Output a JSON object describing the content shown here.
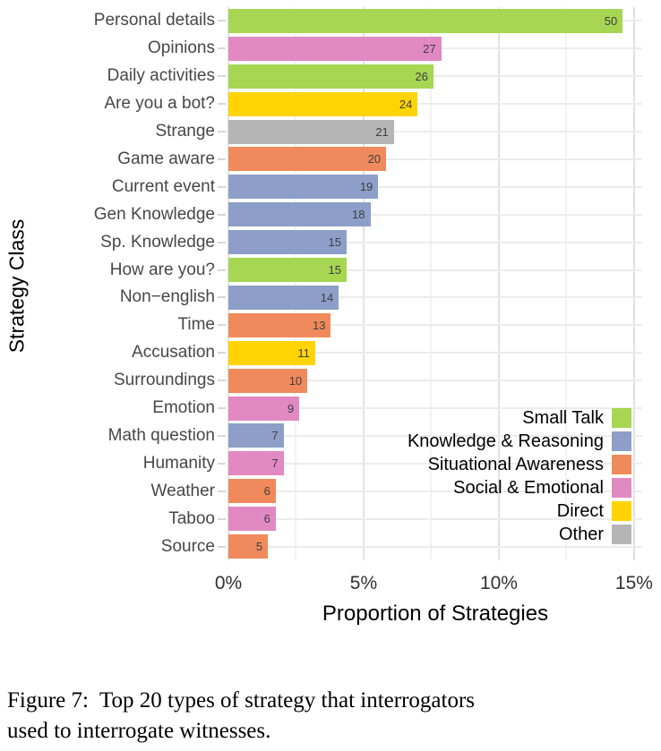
{
  "chart_data": {
    "type": "bar",
    "orientation": "horizontal",
    "title": "",
    "xlabel": "Proportion of Strategies",
    "ylabel": "Strategy Class",
    "x_tick_labels": [
      "0%",
      "5%",
      "10%",
      "15%"
    ],
    "x_tick_values": [
      0,
      5,
      10,
      15
    ],
    "minor_grid_step_pct": 2.5,
    "axis_max_pct": 15.3,
    "grid": true,
    "legend_position": "inside-right",
    "categories": [
      "Personal details",
      "Opinions",
      "Daily activities",
      "Are you a bot?",
      "Strange",
      "Game aware",
      "Current event",
      "Gen Knowledge",
      "Sp. Knowledge",
      "How are you?",
      "Non−english",
      "Time",
      "Accusation",
      "Surroundings",
      "Emotion",
      "Math question",
      "Humanity",
      "Weather",
      "Taboo",
      "Source"
    ],
    "values": [
      50,
      27,
      26,
      24,
      21,
      20,
      19,
      18,
      15,
      15,
      14,
      13,
      11,
      10,
      9,
      7,
      7,
      6,
      6,
      5
    ],
    "proportions_pct": [
      14.58,
      7.87,
      7.58,
      7.0,
      6.12,
      5.83,
      5.54,
      5.25,
      4.37,
      4.37,
      4.08,
      3.79,
      3.21,
      2.92,
      2.62,
      2.04,
      2.04,
      1.75,
      1.75,
      1.46
    ],
    "groups": [
      "Small Talk",
      "Social & Emotional",
      "Small Talk",
      "Direct",
      "Other",
      "Situational Awareness",
      "Knowledge & Reasoning",
      "Knowledge & Reasoning",
      "Knowledge & Reasoning",
      "Small Talk",
      "Knowledge & Reasoning",
      "Situational Awareness",
      "Direct",
      "Situational Awareness",
      "Social & Emotional",
      "Knowledge & Reasoning",
      "Social & Emotional",
      "Situational Awareness",
      "Social & Emotional",
      "Situational Awareness"
    ],
    "legend": [
      {
        "label": "Small Talk",
        "color": "#a6d652"
      },
      {
        "label": "Knowledge & Reasoning",
        "color": "#8d9fc9"
      },
      {
        "label": "Situational Awareness",
        "color": "#f08a5c"
      },
      {
        "label": "Social & Emotional",
        "color": "#e189c2"
      },
      {
        "label": "Direct",
        "color": "#ffd402"
      },
      {
        "label": "Other",
        "color": "#b5b5b5"
      }
    ]
  },
  "caption": {
    "line1": "Figure 7:  Top 20 types of strategy that interrogators",
    "line2": "used to interrogate witnesses."
  }
}
